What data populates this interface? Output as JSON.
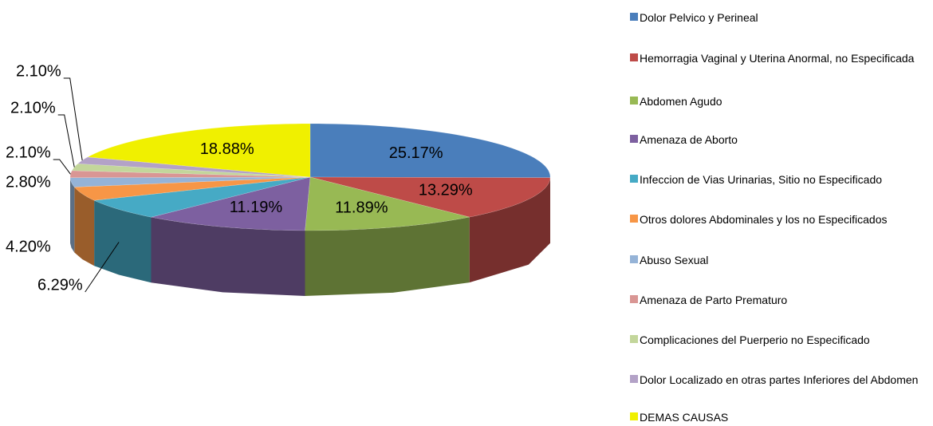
{
  "chart_data": {
    "type": "pie3d",
    "categories": [
      "Dolor Pelvico y Perineal",
      "Hemorragia Vaginal y Uterina Anormal, no Especificada",
      "Abdomen Agudo",
      "Amenaza de Aborto",
      "Infeccion de Vias Urinarias, Sitio no Especificado",
      "Otros dolores Abdominales y los no Especificados",
      "Abuso Sexual",
      "Amenaza de Parto Prematuro",
      "Complicaciones del Puerperio no Especificado",
      "Dolor Localizado en otras partes Inferiores del Abdomen",
      "DEMAS CAUSAS"
    ],
    "values": [
      25.17,
      13.29,
      11.89,
      11.19,
      6.29,
      4.2,
      2.8,
      2.1,
      2.1,
      2.1,
      18.88
    ],
    "value_labels": [
      "25.17%",
      "13.29%",
      "11.89%",
      "11.19%",
      "6.29%",
      "4.20%",
      "2.80%",
      "2.10%",
      "2.10%",
      "2.10%",
      "18.88%"
    ],
    "colors": [
      "#4a7ebb",
      "#be4b48",
      "#98b954",
      "#7d60a0",
      "#46aac5",
      "#f79646",
      "#95b3d7",
      "#d99694",
      "#c3d69b",
      "#b3a2c7",
      "#f0f000"
    ],
    "legend": "right"
  }
}
